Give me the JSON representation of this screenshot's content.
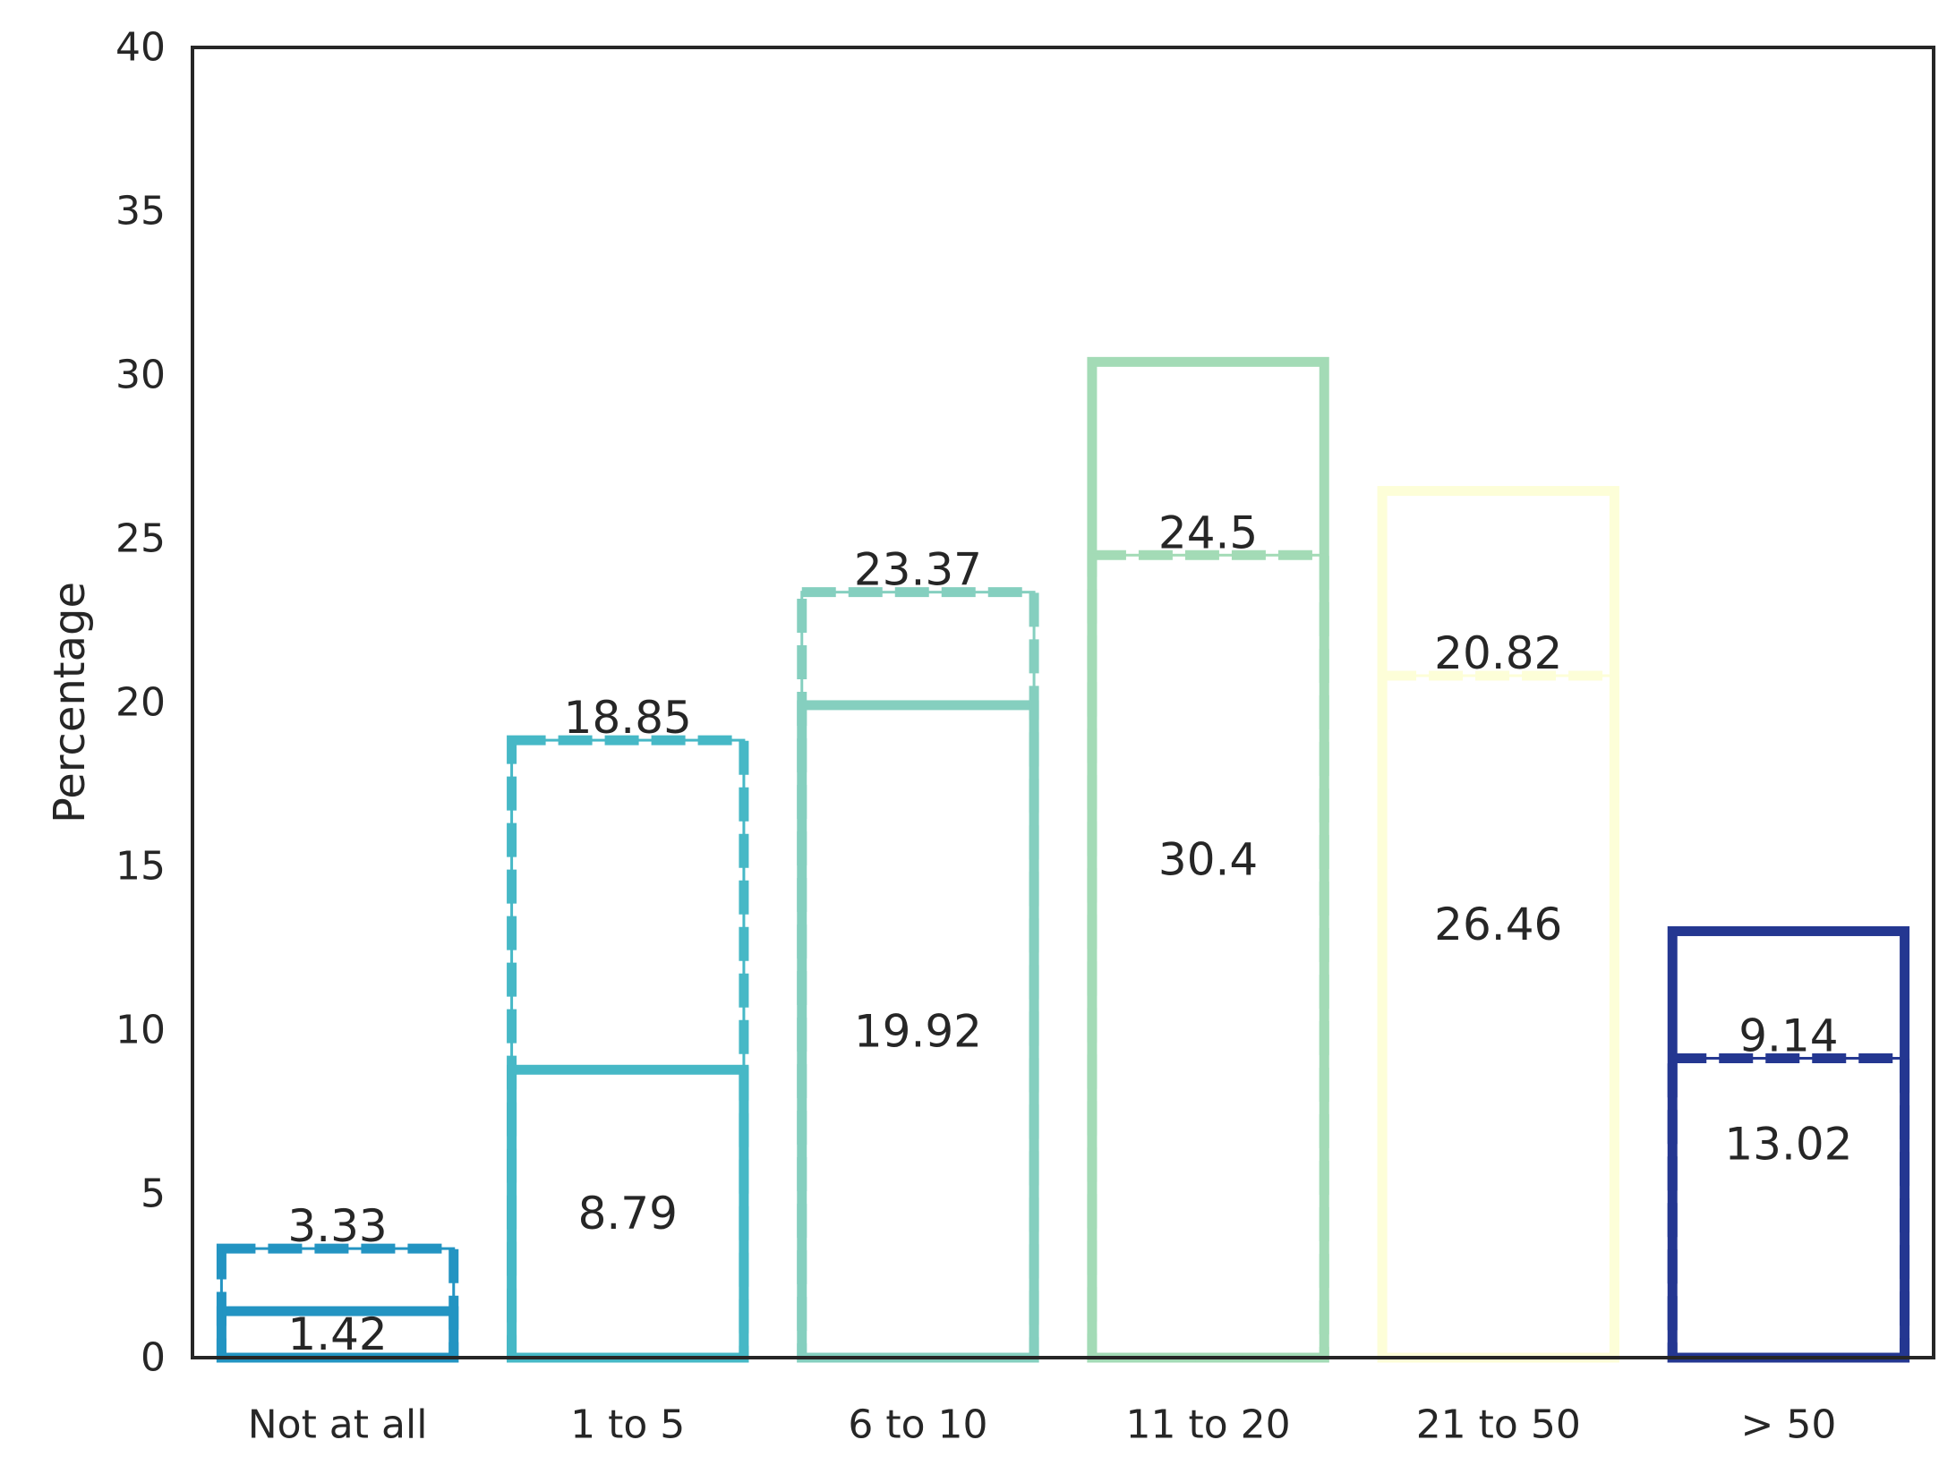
{
  "chart_data": {
    "type": "bar",
    "ylabel": "Percentage",
    "ylim": [
      0,
      40
    ],
    "yticks": [
      0,
      5,
      10,
      15,
      20,
      25,
      30,
      35,
      40
    ],
    "grid": false,
    "categories": [
      "Not at all",
      "1 to 5",
      "6 to 10",
      "11 to 20",
      "21 to 50",
      "> 50"
    ],
    "colors": [
      "#2394c2",
      "#46b8c6",
      "#85cfbf",
      "#a3dbb6",
      "#fdfed8",
      "#243791"
    ],
    "series": [
      {
        "style": "solid",
        "values": [
          1.42,
          8.79,
          19.92,
          30.4,
          26.46,
          13.02
        ]
      },
      {
        "style": "dashed",
        "values": [
          3.33,
          18.85,
          23.37,
          24.5,
          20.82,
          9.14
        ]
      }
    ],
    "data_labels": {
      "solid": [
        "1.42",
        "8.79",
        "19.92",
        "30.4",
        "26.46",
        "13.02"
      ],
      "dashed": [
        "3.33",
        "18.85",
        "23.37",
        "24.5",
        "20.82",
        "9.14"
      ]
    }
  }
}
